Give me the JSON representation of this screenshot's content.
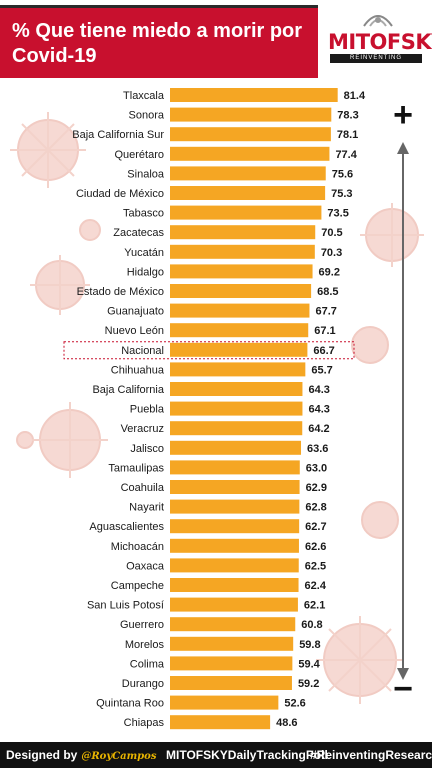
{
  "header": {
    "title": "% Que tiene miedo a morir por Covid-19",
    "logo_name": "MITOFSKY",
    "logo_tagline": "REINVENTING RESEARCH"
  },
  "footer": {
    "designed_by": "Designed by",
    "designer_handle": "@RoyCampos",
    "hashtag_poll": "MITOFSKYDailyTrackingPoll",
    "hashtag_research": "#ReinventingResearch"
  },
  "colors": {
    "bar": "#f5a623",
    "highlight_outline": "#c8102e",
    "title_bg": "#c8102e",
    "footer_bg": "#111111"
  },
  "chart_data": {
    "type": "bar",
    "orientation": "horizontal",
    "categories": [
      "Tlaxcala",
      "Sonora",
      "Baja California Sur",
      "Querétaro",
      "Sinaloa",
      "Ciudad de México",
      "Tabasco",
      "Zacatecas",
      "Yucatán",
      "Hidalgo",
      "Estado de México",
      "Guanajuato",
      "Nuevo León",
      "Nacional",
      "Chihuahua",
      "Baja California",
      "Puebla",
      "Veracruz",
      "Jalisco",
      "Tamaulipas",
      "Coahuila",
      "Nayarit",
      "Aguascalientes",
      "Michoacán",
      "Oaxaca",
      "Campeche",
      "San Luis Potosí",
      "Guerrero",
      "Morelos",
      "Colima",
      "Durango",
      "Quintana Roo",
      "Chiapas"
    ],
    "values": [
      81.4,
      78.3,
      78.1,
      77.4,
      75.6,
      75.3,
      73.5,
      70.5,
      70.3,
      69.2,
      68.5,
      67.7,
      67.1,
      66.7,
      65.7,
      64.3,
      64.3,
      64.2,
      63.6,
      63.0,
      62.9,
      62.8,
      62.7,
      62.6,
      62.5,
      62.4,
      62.1,
      60.8,
      59.8,
      59.4,
      59.2,
      52.6,
      48.6
    ],
    "value_labels": [
      "81.4",
      "78.3",
      "78.1",
      "77.4",
      "75.6",
      "75.3",
      "73.5",
      "70.5",
      "70.3",
      "69.2",
      "68.5",
      "67.7",
      "67.1",
      "66.7",
      "65.7",
      "64.3",
      "64.3",
      "64.2",
      "63.6",
      "63.0",
      "62.9",
      "62.8",
      "62.7",
      "62.6",
      "62.5",
      "62.4",
      "62.1",
      "60.8",
      "59.8",
      "59.4",
      "59.2",
      "52.6",
      "48.6"
    ],
    "highlight_category": "Nacional",
    "scale_top_symbol": "+",
    "scale_bottom_symbol": "−",
    "title": "% Que tiene miedo a morir por Covid-19",
    "xlabel": "",
    "ylabel": "",
    "grid": false,
    "legend": "none"
  }
}
